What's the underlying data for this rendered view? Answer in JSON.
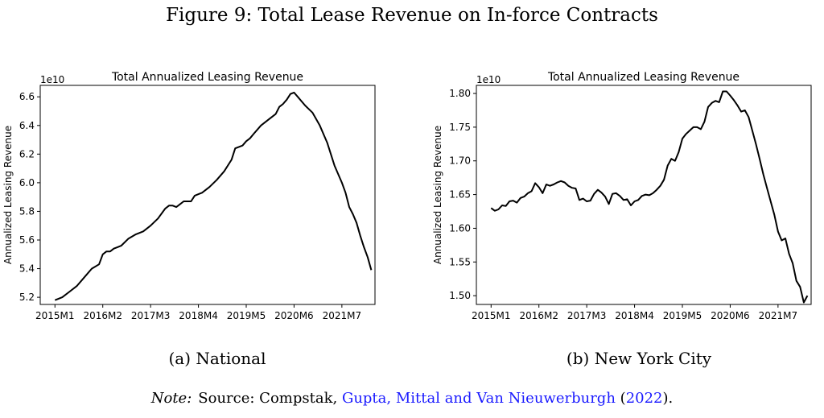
{
  "figure": {
    "title": "Figure 9: Total Lease Revenue on In-force Contracts",
    "note_label": "Note:",
    "note_source": "Source: Compstak,",
    "note_authors": "Gupta, Mittal and Van Nieuwerburgh",
    "note_year": "2022",
    "note_open": "(",
    "note_close": ")."
  },
  "chart_data": [
    {
      "type": "line",
      "caption": "(a) National",
      "title": "Total Annualized Leasing Revenue",
      "ylabel": "Annualized Leasing Revenue",
      "xlabel": "",
      "scale_label": "1e10",
      "ylim": [
        5.15,
        6.68
      ],
      "yticks": [
        5.2,
        5.4,
        5.6,
        5.8,
        6.0,
        6.2,
        6.4,
        6.6
      ],
      "ytick_labels": [
        "5.2",
        "5.4",
        "5.6",
        "5.8",
        "6.0",
        "6.2",
        "6.4",
        "6.6"
      ],
      "xlim": [
        -4,
        87
      ],
      "xticks": [
        0,
        13,
        26,
        39,
        52,
        65,
        78
      ],
      "xtick_labels": [
        "2015M1",
        "2016M2",
        "2017M3",
        "2018M4",
        "2019M5",
        "2020M6",
        "2021M7"
      ],
      "series": [
        {
          "name": "National",
          "x": [
            0,
            2,
            4,
            6,
            8,
            10,
            12,
            13,
            14,
            15,
            16,
            17,
            18,
            20,
            22,
            24,
            26,
            28,
            30,
            31,
            32,
            33,
            34,
            35,
            36,
            37,
            38,
            39,
            40,
            42,
            44,
            46,
            48,
            49,
            50,
            51,
            52,
            53,
            54,
            56,
            58,
            60,
            61,
            62,
            63,
            64,
            65,
            66,
            68,
            70,
            72,
            74,
            76,
            78,
            79,
            80,
            81,
            82,
            83,
            84,
            85,
            86
          ],
          "values": [
            5.18,
            5.2,
            5.24,
            5.28,
            5.34,
            5.4,
            5.43,
            5.5,
            5.52,
            5.52,
            5.54,
            5.55,
            5.56,
            5.61,
            5.64,
            5.66,
            5.7,
            5.75,
            5.82,
            5.84,
            5.84,
            5.83,
            5.85,
            5.87,
            5.87,
            5.87,
            5.91,
            5.92,
            5.93,
            5.97,
            6.02,
            6.08,
            6.16,
            6.24,
            6.25,
            6.26,
            6.29,
            6.31,
            6.34,
            6.4,
            6.44,
            6.48,
            6.53,
            6.55,
            6.58,
            6.62,
            6.63,
            6.6,
            6.54,
            6.49,
            6.4,
            6.28,
            6.12,
            6.0,
            5.93,
            5.83,
            5.78,
            5.72,
            5.63,
            5.55,
            5.48,
            5.39
          ]
        }
      ]
    },
    {
      "type": "line",
      "caption": "(b) New York City",
      "title": "Total Annualized Leasing Revenue",
      "ylabel": "Annualized Leasing Revenue",
      "xlabel": "",
      "scale_label": "1e10",
      "ylim": [
        1.487,
        1.812
      ],
      "yticks": [
        1.5,
        1.55,
        1.6,
        1.65,
        1.7,
        1.75,
        1.8
      ],
      "ytick_labels": [
        "1.50",
        "1.55",
        "1.60",
        "1.65",
        "1.70",
        "1.75",
        "1.80"
      ],
      "xlim": [
        -4,
        87
      ],
      "xticks": [
        0,
        13,
        26,
        39,
        52,
        65,
        78
      ],
      "xtick_labels": [
        "2015M1",
        "2016M2",
        "2017M3",
        "2018M4",
        "2019M5",
        "2020M6",
        "2021M7"
      ],
      "series": [
        {
          "name": "New York City",
          "x": [
            0,
            1,
            2,
            3,
            4,
            5,
            6,
            7,
            8,
            9,
            10,
            11,
            12,
            13,
            14,
            15,
            16,
            17,
            18,
            19,
            20,
            21,
            22,
            23,
            24,
            25,
            26,
            27,
            28,
            29,
            30,
            31,
            32,
            33,
            34,
            35,
            36,
            37,
            38,
            39,
            40,
            41,
            42,
            43,
            44,
            45,
            46,
            47,
            48,
            49,
            50,
            51,
            52,
            53,
            54,
            55,
            56,
            57,
            58,
            59,
            60,
            61,
            62,
            63,
            64,
            65,
            66,
            67,
            68,
            69,
            70,
            71,
            72,
            73,
            74,
            75,
            76,
            77,
            78,
            79,
            80,
            81,
            82,
            83,
            84,
            85,
            86
          ],
          "values": [
            1.63,
            1.626,
            1.628,
            1.634,
            1.633,
            1.64,
            1.641,
            1.638,
            1.645,
            1.647,
            1.652,
            1.655,
            1.667,
            1.661,
            1.652,
            1.665,
            1.663,
            1.665,
            1.668,
            1.67,
            1.668,
            1.663,
            1.66,
            1.659,
            1.642,
            1.644,
            1.64,
            1.641,
            1.651,
            1.657,
            1.653,
            1.647,
            1.636,
            1.651,
            1.652,
            1.648,
            1.642,
            1.643,
            1.634,
            1.64,
            1.642,
            1.648,
            1.65,
            1.649,
            1.652,
            1.657,
            1.663,
            1.672,
            1.693,
            1.703,
            1.7,
            1.713,
            1.733,
            1.74,
            1.745,
            1.75,
            1.75,
            1.747,
            1.758,
            1.78,
            1.786,
            1.789,
            1.787,
            1.803,
            1.803,
            1.797,
            1.79,
            1.782,
            1.773,
            1.775,
            1.765,
            1.745,
            1.725,
            1.703,
            1.68,
            1.66,
            1.64,
            1.62,
            1.595,
            1.582,
            1.585,
            1.562,
            1.548,
            1.522,
            1.513,
            1.49,
            1.5
          ]
        }
      ]
    }
  ]
}
